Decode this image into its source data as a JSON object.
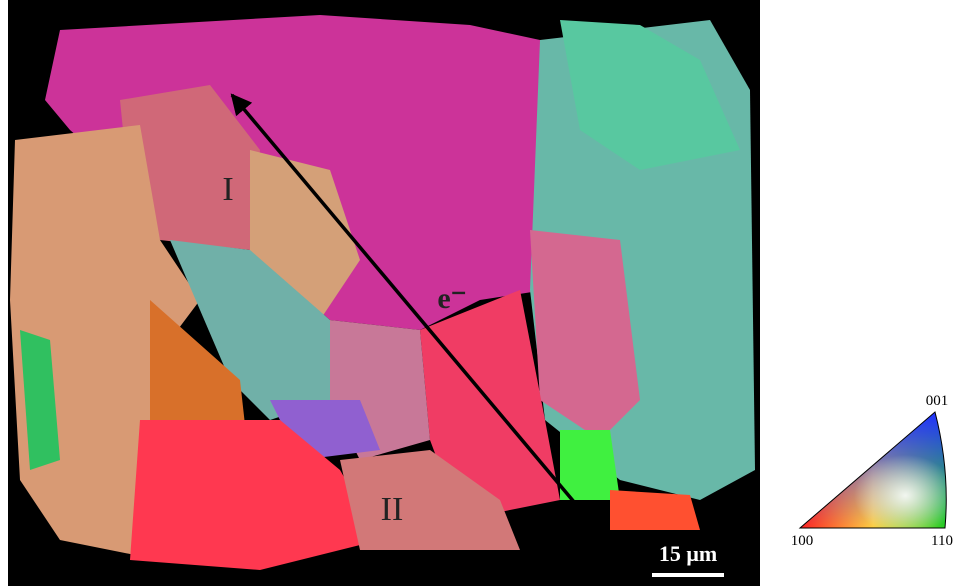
{
  "map": {
    "grain_labels": [
      "I",
      "II"
    ],
    "beam_label": "e⁻",
    "scale_bar": "15 μm"
  },
  "legend": {
    "corners": [
      "001",
      "100",
      "110"
    ]
  }
}
